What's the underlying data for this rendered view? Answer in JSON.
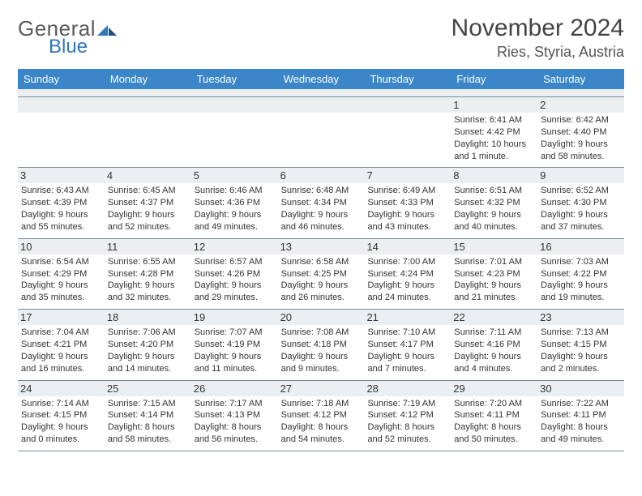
{
  "logo": {
    "general": "General",
    "blue": "Blue"
  },
  "header": {
    "title": "November 2024",
    "location": "Ries, Styria, Austria"
  },
  "colors": {
    "header_bar": "#3b86c8",
    "daynum_bg": "#eceff2",
    "rule": "#7c8a99",
    "logo_blue": "#2f76bb",
    "logo_gray": "#5a5a5a"
  },
  "weekdays": [
    "Sunday",
    "Monday",
    "Tuesday",
    "Wednesday",
    "Thursday",
    "Friday",
    "Saturday"
  ],
  "weeks": [
    [
      {
        "n": "",
        "sr": "",
        "ss": "",
        "dl": ""
      },
      {
        "n": "",
        "sr": "",
        "ss": "",
        "dl": ""
      },
      {
        "n": "",
        "sr": "",
        "ss": "",
        "dl": ""
      },
      {
        "n": "",
        "sr": "",
        "ss": "",
        "dl": ""
      },
      {
        "n": "",
        "sr": "",
        "ss": "",
        "dl": ""
      },
      {
        "n": "1",
        "sr": "Sunrise: 6:41 AM",
        "ss": "Sunset: 4:42 PM",
        "dl": "Daylight: 10 hours and 1 minute."
      },
      {
        "n": "2",
        "sr": "Sunrise: 6:42 AM",
        "ss": "Sunset: 4:40 PM",
        "dl": "Daylight: 9 hours and 58 minutes."
      }
    ],
    [
      {
        "n": "3",
        "sr": "Sunrise: 6:43 AM",
        "ss": "Sunset: 4:39 PM",
        "dl": "Daylight: 9 hours and 55 minutes."
      },
      {
        "n": "4",
        "sr": "Sunrise: 6:45 AM",
        "ss": "Sunset: 4:37 PM",
        "dl": "Daylight: 9 hours and 52 minutes."
      },
      {
        "n": "5",
        "sr": "Sunrise: 6:46 AM",
        "ss": "Sunset: 4:36 PM",
        "dl": "Daylight: 9 hours and 49 minutes."
      },
      {
        "n": "6",
        "sr": "Sunrise: 6:48 AM",
        "ss": "Sunset: 4:34 PM",
        "dl": "Daylight: 9 hours and 46 minutes."
      },
      {
        "n": "7",
        "sr": "Sunrise: 6:49 AM",
        "ss": "Sunset: 4:33 PM",
        "dl": "Daylight: 9 hours and 43 minutes."
      },
      {
        "n": "8",
        "sr": "Sunrise: 6:51 AM",
        "ss": "Sunset: 4:32 PM",
        "dl": "Daylight: 9 hours and 40 minutes."
      },
      {
        "n": "9",
        "sr": "Sunrise: 6:52 AM",
        "ss": "Sunset: 4:30 PM",
        "dl": "Daylight: 9 hours and 37 minutes."
      }
    ],
    [
      {
        "n": "10",
        "sr": "Sunrise: 6:54 AM",
        "ss": "Sunset: 4:29 PM",
        "dl": "Daylight: 9 hours and 35 minutes."
      },
      {
        "n": "11",
        "sr": "Sunrise: 6:55 AM",
        "ss": "Sunset: 4:28 PM",
        "dl": "Daylight: 9 hours and 32 minutes."
      },
      {
        "n": "12",
        "sr": "Sunrise: 6:57 AM",
        "ss": "Sunset: 4:26 PM",
        "dl": "Daylight: 9 hours and 29 minutes."
      },
      {
        "n": "13",
        "sr": "Sunrise: 6:58 AM",
        "ss": "Sunset: 4:25 PM",
        "dl": "Daylight: 9 hours and 26 minutes."
      },
      {
        "n": "14",
        "sr": "Sunrise: 7:00 AM",
        "ss": "Sunset: 4:24 PM",
        "dl": "Daylight: 9 hours and 24 minutes."
      },
      {
        "n": "15",
        "sr": "Sunrise: 7:01 AM",
        "ss": "Sunset: 4:23 PM",
        "dl": "Daylight: 9 hours and 21 minutes."
      },
      {
        "n": "16",
        "sr": "Sunrise: 7:03 AM",
        "ss": "Sunset: 4:22 PM",
        "dl": "Daylight: 9 hours and 19 minutes."
      }
    ],
    [
      {
        "n": "17",
        "sr": "Sunrise: 7:04 AM",
        "ss": "Sunset: 4:21 PM",
        "dl": "Daylight: 9 hours and 16 minutes."
      },
      {
        "n": "18",
        "sr": "Sunrise: 7:06 AM",
        "ss": "Sunset: 4:20 PM",
        "dl": "Daylight: 9 hours and 14 minutes."
      },
      {
        "n": "19",
        "sr": "Sunrise: 7:07 AM",
        "ss": "Sunset: 4:19 PM",
        "dl": "Daylight: 9 hours and 11 minutes."
      },
      {
        "n": "20",
        "sr": "Sunrise: 7:08 AM",
        "ss": "Sunset: 4:18 PM",
        "dl": "Daylight: 9 hours and 9 minutes."
      },
      {
        "n": "21",
        "sr": "Sunrise: 7:10 AM",
        "ss": "Sunset: 4:17 PM",
        "dl": "Daylight: 9 hours and 7 minutes."
      },
      {
        "n": "22",
        "sr": "Sunrise: 7:11 AM",
        "ss": "Sunset: 4:16 PM",
        "dl": "Daylight: 9 hours and 4 minutes."
      },
      {
        "n": "23",
        "sr": "Sunrise: 7:13 AM",
        "ss": "Sunset: 4:15 PM",
        "dl": "Daylight: 9 hours and 2 minutes."
      }
    ],
    [
      {
        "n": "24",
        "sr": "Sunrise: 7:14 AM",
        "ss": "Sunset: 4:15 PM",
        "dl": "Daylight: 9 hours and 0 minutes."
      },
      {
        "n": "25",
        "sr": "Sunrise: 7:15 AM",
        "ss": "Sunset: 4:14 PM",
        "dl": "Daylight: 8 hours and 58 minutes."
      },
      {
        "n": "26",
        "sr": "Sunrise: 7:17 AM",
        "ss": "Sunset: 4:13 PM",
        "dl": "Daylight: 8 hours and 56 minutes."
      },
      {
        "n": "27",
        "sr": "Sunrise: 7:18 AM",
        "ss": "Sunset: 4:12 PM",
        "dl": "Daylight: 8 hours and 54 minutes."
      },
      {
        "n": "28",
        "sr": "Sunrise: 7:19 AM",
        "ss": "Sunset: 4:12 PM",
        "dl": "Daylight: 8 hours and 52 minutes."
      },
      {
        "n": "29",
        "sr": "Sunrise: 7:20 AM",
        "ss": "Sunset: 4:11 PM",
        "dl": "Daylight: 8 hours and 50 minutes."
      },
      {
        "n": "30",
        "sr": "Sunrise: 7:22 AM",
        "ss": "Sunset: 4:11 PM",
        "dl": "Daylight: 8 hours and 49 minutes."
      }
    ]
  ]
}
